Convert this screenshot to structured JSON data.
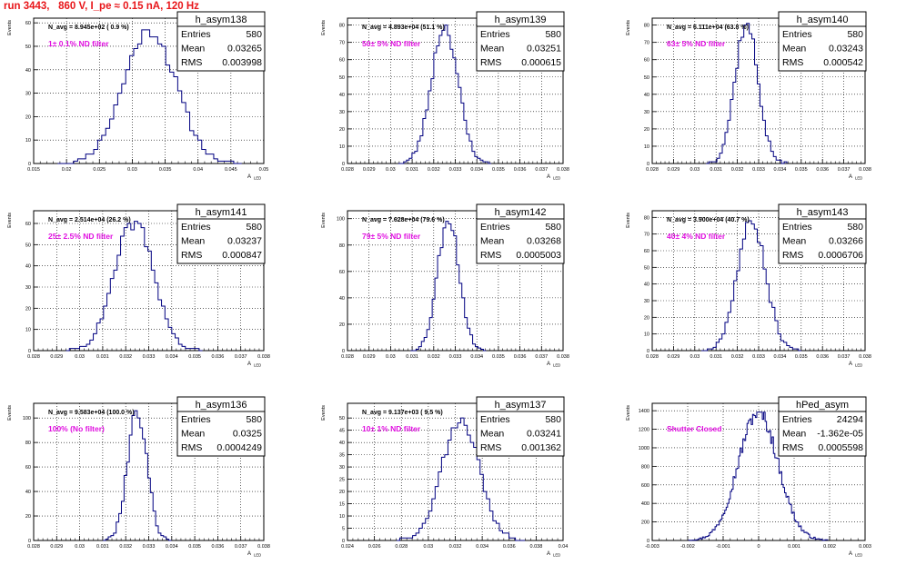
{
  "title": "run 3443,   860 V, I_pe ≈ 0.15 nA, 120 Hz",
  "colors": {
    "line": "#000080",
    "annotation": "#e010e0",
    "title": "#e8161a",
    "grid": "#000000"
  },
  "common": {
    "ylabel": "Events",
    "xlabel": "A",
    "xlabel_sub": "LED"
  },
  "chart_data": [
    {
      "type": "bar",
      "name": "h_asym138",
      "navg": "N_avg = 8.945e+02 ( 0.9 %)",
      "annotation": "1± 0.1% ND filter",
      "stats": {
        "entries": "580",
        "mean": "0.03265",
        "rms": "0.003998"
      },
      "xlim": [
        0.015,
        0.05
      ],
      "xticks": [
        "0.015",
        "0.02",
        "0.025",
        "0.03",
        "0.035",
        "0.04",
        "0.045",
        "0.05"
      ],
      "ylim": [
        0,
        62
      ],
      "yticks": [
        "0",
        "10",
        "20",
        "30",
        "40",
        "50",
        "60"
      ],
      "mean": 0.03265,
      "rms": 0.003998,
      "bins": 46,
      "peak": 57,
      "seed": 11
    },
    {
      "type": "bar",
      "name": "h_asym139",
      "navg": "N_avg = 4.893e+04 (51.1 %)",
      "annotation": "50± 5% ND filter",
      "stats": {
        "entries": "580",
        "mean": "0.03251",
        "rms": "0.000615"
      },
      "xlim": [
        0.028,
        0.038
      ],
      "xticks": [
        "0.028",
        "0.029",
        "0.03",
        "0.031",
        "0.032",
        "0.033",
        "0.034",
        "0.035",
        "0.036",
        "0.037",
        "0.038"
      ],
      "ylim": [
        0,
        84
      ],
      "yticks": [
        "0",
        "10",
        "20",
        "30",
        "40",
        "50",
        "60",
        "70",
        "80"
      ],
      "mean": 0.03251,
      "rms": 0.000615,
      "bins": 34,
      "peak": 80,
      "seed": 23
    },
    {
      "type": "bar",
      "name": "h_asym140",
      "navg": "N_avg = 6.111e+04 (63.8 %)",
      "annotation": "63± 5% ND filter",
      "stats": {
        "entries": "580",
        "mean": "0.03243",
        "rms": "0.000542"
      },
      "xlim": [
        0.028,
        0.038
      ],
      "xticks": [
        "0.028",
        "0.029",
        "0.03",
        "0.031",
        "0.032",
        "0.033",
        "0.034",
        "0.035",
        "0.036",
        "0.037",
        "0.038"
      ],
      "ylim": [
        0,
        84
      ],
      "yticks": [
        "0",
        "10",
        "20",
        "30",
        "40",
        "50",
        "60",
        "70",
        "80"
      ],
      "mean": 0.03243,
      "rms": 0.000542,
      "bins": 30,
      "peak": 81,
      "seed": 37
    },
    {
      "type": "bar",
      "name": "h_asym141",
      "navg": "N_avg = 2.514e+04 (26.2 %)",
      "annotation": "25± 2.5% ND filter",
      "stats": {
        "entries": "580",
        "mean": "0.03237",
        "rms": "0.000847"
      },
      "xlim": [
        0.028,
        0.038
      ],
      "xticks": [
        "0.028",
        "0.029",
        "0.03",
        "0.031",
        "0.032",
        "0.033",
        "0.034",
        "0.035",
        "0.036",
        "0.037",
        "0.038"
      ],
      "ylim": [
        0,
        66
      ],
      "yticks": [
        "0",
        "10",
        "20",
        "30",
        "40",
        "50",
        "60"
      ],
      "mean": 0.03237,
      "rms": 0.000847,
      "bins": 40,
      "peak": 61,
      "seed": 41
    },
    {
      "type": "bar",
      "name": "h_asym142",
      "navg": "N_avg = 7.628e+04 (79.6 %)",
      "annotation": "79± 5% ND filter",
      "stats": {
        "entries": "580",
        "mean": "0.03268",
        "rms": "0.0005003"
      },
      "xlim": [
        0.028,
        0.038
      ],
      "xticks": [
        "0.028",
        "0.029",
        "0.03",
        "0.031",
        "0.032",
        "0.033",
        "0.034",
        "0.035",
        "0.036",
        "0.037",
        "0.038"
      ],
      "ylim": [
        0,
        106
      ],
      "yticks": [
        "0",
        "20",
        "40",
        "60",
        "80",
        "100"
      ],
      "mean": 0.03268,
      "rms": 0.0005003,
      "bins": 28,
      "peak": 101,
      "seed": 53
    },
    {
      "type": "bar",
      "name": "h_asym143",
      "navg": "N_avg = 3.900e+04 (40.7 %)",
      "annotation": "40± 4% ND filter",
      "stats": {
        "entries": "580",
        "mean": "0.03266",
        "rms": "0.0006706"
      },
      "xlim": [
        0.028,
        0.038
      ],
      "xticks": [
        "0.028",
        "0.029",
        "0.03",
        "0.031",
        "0.032",
        "0.033",
        "0.034",
        "0.035",
        "0.036",
        "0.037",
        "0.038"
      ],
      "ylim": [
        0,
        84
      ],
      "yticks": [
        "0",
        "10",
        "20",
        "30",
        "40",
        "50",
        "60",
        "70",
        "80"
      ],
      "mean": 0.03266,
      "rms": 0.0006706,
      "bins": 34,
      "peak": 78,
      "seed": 67
    },
    {
      "type": "bar",
      "name": "h_asym136",
      "navg": "N_avg = 9.583e+04 (100.0 %)",
      "annotation": "100% (No filter)",
      "stats": {
        "entries": "580",
        "mean": "0.0325",
        "rms": "0.0004249"
      },
      "xlim": [
        0.028,
        0.038
      ],
      "xticks": [
        "0.028",
        "0.029",
        "0.03",
        "0.031",
        "0.032",
        "0.033",
        "0.034",
        "0.035",
        "0.036",
        "0.037",
        "0.038"
      ],
      "ylim": [
        0,
        112
      ],
      "yticks": [
        "0",
        "20",
        "40",
        "60",
        "80",
        "100"
      ],
      "mean": 0.0325,
      "rms": 0.0004249,
      "bins": 26,
      "peak": 106,
      "seed": 79
    },
    {
      "type": "bar",
      "name": "h_asym137",
      "navg": "N_avg = 9.137e+03 ( 9.5 %)",
      "annotation": "10± 1% ND filter",
      "stats": {
        "entries": "580",
        "mean": "0.03241",
        "rms": "0.001362"
      },
      "xlim": [
        0.024,
        0.04
      ],
      "xticks": [
        "0.024",
        "0.026",
        "0.028",
        "0.03",
        "0.032",
        "0.034",
        "0.036",
        "0.038",
        "0.04"
      ],
      "ylim": [
        0,
        56
      ],
      "yticks": [
        "0",
        "5",
        "10",
        "15",
        "20",
        "25",
        "30",
        "35",
        "40",
        "45",
        "50"
      ],
      "mean": 0.03241,
      "rms": 0.001362,
      "bins": 40,
      "peak": 50,
      "seed": 83
    },
    {
      "type": "bar",
      "name": "hPed_asym",
      "navg": "",
      "annotation": "Shutter Closed",
      "stats": {
        "entries": "24294",
        "mean": "-1.362e-05",
        "rms": "0.0005598"
      },
      "xlim": [
        -0.003,
        0.003
      ],
      "xticks": [
        "-0.003",
        "-0.002",
        "-0.001",
        "0",
        "0.001",
        "0.002",
        "0.003"
      ],
      "ylim": [
        0,
        1480
      ],
      "yticks": [
        "0",
        "200",
        "400",
        "600",
        "800",
        "1000",
        "1200",
        "1400"
      ],
      "mean": -1.36e-05,
      "rms": 0.00056,
      "bins": 100,
      "peak": 1385,
      "seed": 97
    }
  ]
}
